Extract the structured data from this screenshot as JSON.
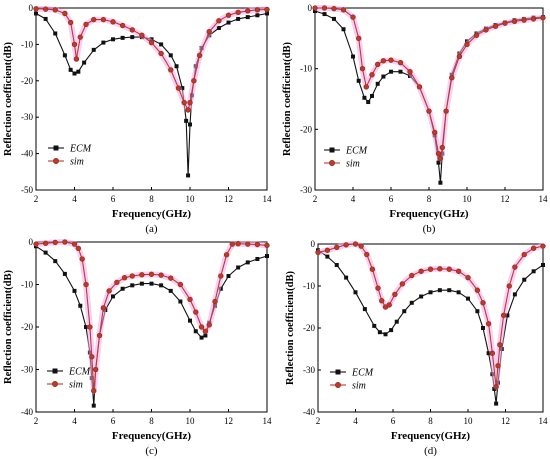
{
  "colors": {
    "ecm": "#111111",
    "sim": "#c0392b",
    "sim_marker": "#8b2a18",
    "sim_glow": "#f2a8f0",
    "axis": "#000000"
  },
  "chart_data": [
    {
      "type": "line",
      "panel_label": "(a)",
      "xlabel": "Frequency(GHz)",
      "ylabel": "Reflection coefficient(dB)",
      "xlim": [
        2,
        14
      ],
      "ylim": [
        -50,
        0
      ],
      "xticks": [
        2,
        4,
        6,
        8,
        10,
        12,
        14
      ],
      "yticks": [
        0,
        -10,
        -20,
        -30,
        -40,
        -50
      ],
      "xtick_labels": [
        "2",
        "4",
        "6",
        "8",
        "10",
        "12",
        "14"
      ],
      "ytick_labels": [
        "0",
        "-10",
        "-20",
        "-30",
        "-40",
        "-50"
      ],
      "grid": false,
      "legend": "bottom-left",
      "series": [
        {
          "name": "ECM",
          "marker": "square",
          "x": [
            2,
            2.5,
            3,
            3.5,
            3.8,
            4,
            4.2,
            4.5,
            5,
            5.5,
            6,
            6.5,
            7,
            7.5,
            8,
            8.5,
            9,
            9.3,
            9.6,
            9.8,
            9.9,
            10,
            10.1,
            10.3,
            10.6,
            11,
            11.5,
            12,
            12.5,
            13,
            13.5,
            14
          ],
          "y": [
            -1.5,
            -3,
            -7,
            -13,
            -17,
            -18,
            -17.5,
            -15,
            -11.5,
            -9.5,
            -8.6,
            -8.2,
            -8,
            -8,
            -8.6,
            -10,
            -13,
            -16,
            -22,
            -31,
            -46,
            -32,
            -24,
            -16,
            -11,
            -7.5,
            -5.5,
            -4,
            -3,
            -2.5,
            -2,
            -1.5
          ]
        },
        {
          "name": "sim",
          "marker": "circle",
          "x": [
            2,
            2.5,
            3,
            3.5,
            3.8,
            4.0,
            4.1,
            4.3,
            4.6,
            5,
            5.5,
            6,
            6.5,
            7,
            7.5,
            8,
            8.5,
            9,
            9.4,
            9.7,
            9.9,
            10.0,
            10.2,
            10.5,
            11,
            11.5,
            12,
            12.5,
            13,
            13.5,
            14
          ],
          "y": [
            -0.2,
            -0.3,
            -0.5,
            -1.5,
            -4,
            -10,
            -14,
            -8,
            -4.5,
            -3.2,
            -3.2,
            -3.8,
            -4.8,
            -6,
            -7.5,
            -9.5,
            -12.5,
            -17,
            -22,
            -26,
            -28,
            -26,
            -20,
            -13,
            -6.5,
            -3.5,
            -2,
            -1.2,
            -0.8,
            -0.5,
            -0.4
          ]
        }
      ]
    },
    {
      "type": "line",
      "panel_label": "(b)",
      "xlabel": "Frequency(GHz)",
      "ylabel": "Reflection coefficient(dB)",
      "xlim": [
        2,
        14
      ],
      "ylim": [
        -30,
        0
      ],
      "xticks": [
        2,
        4,
        6,
        8,
        10,
        12,
        14
      ],
      "yticks": [
        0,
        -10,
        -20,
        -30
      ],
      "xtick_labels": [
        "2",
        "4",
        "6",
        "8",
        "10",
        "12",
        "14"
      ],
      "ytick_labels": [
        "0",
        "-10",
        "-20",
        "-30"
      ],
      "grid": false,
      "legend": "bottom-right",
      "series": [
        {
          "name": "ECM",
          "marker": "square",
          "x": [
            2,
            2.5,
            3,
            3.5,
            4,
            4.3,
            4.6,
            4.8,
            5,
            5.3,
            5.6,
            6,
            6.5,
            7,
            7.5,
            8,
            8.3,
            8.5,
            8.6,
            8.7,
            8.9,
            9.2,
            9.6,
            10,
            10.5,
            11,
            11.5,
            12,
            12.5,
            13,
            13.5,
            14
          ],
          "y": [
            -0.5,
            -1,
            -1.8,
            -3.5,
            -8,
            -12,
            -14.8,
            -15.5,
            -14.5,
            -12.5,
            -11.3,
            -10.5,
            -10.5,
            -11.2,
            -13,
            -17,
            -21,
            -25.5,
            -28.8,
            -24,
            -17,
            -11,
            -7.5,
            -5.5,
            -4.2,
            -3.4,
            -2.8,
            -2.4,
            -2,
            -1.8,
            -1.6,
            -1.5
          ]
        },
        {
          "name": "sim",
          "marker": "circle",
          "x": [
            2,
            2.5,
            3,
            3.5,
            4,
            4.3,
            4.5,
            4.7,
            5,
            5.3,
            5.6,
            6,
            6.5,
            7,
            7.5,
            8,
            8.3,
            8.5,
            8.6,
            8.7,
            8.9,
            9.2,
            9.6,
            10,
            10.5,
            11,
            11.5,
            12,
            12.5,
            13,
            13.5,
            14
          ],
          "y": [
            0,
            0,
            -0.1,
            -0.3,
            -1.5,
            -5,
            -10,
            -13,
            -11,
            -9.3,
            -8.7,
            -8.6,
            -9,
            -10.5,
            -13,
            -17,
            -20.5,
            -24,
            -24.8,
            -23,
            -17,
            -11.5,
            -8,
            -6,
            -4.5,
            -3.6,
            -3,
            -2.5,
            -2.2,
            -2,
            -1.8,
            -1.6
          ]
        }
      ]
    },
    {
      "type": "line",
      "panel_label": "(c)",
      "xlabel": "Frequency(GHz)",
      "ylabel": "Reflection coefficient(dB)",
      "xlim": [
        2,
        14
      ],
      "ylim": [
        -40,
        0
      ],
      "xticks": [
        2,
        4,
        6,
        8,
        10,
        12,
        14
      ],
      "yticks": [
        0,
        -10,
        -20,
        -30,
        -40
      ],
      "xtick_labels": [
        "2",
        "4",
        "6",
        "8",
        "10",
        "12",
        "14"
      ],
      "ytick_labels": [
        "0",
        "-10",
        "-20",
        "-30",
        "-40"
      ],
      "grid": false,
      "legend": "bottom-left",
      "series": [
        {
          "name": "ECM",
          "marker": "square",
          "x": [
            2,
            2.5,
            3,
            3.5,
            4,
            4.3,
            4.6,
            4.8,
            4.9,
            5.0,
            5.1,
            5.3,
            5.6,
            6,
            6.5,
            7,
            7.5,
            8,
            8.5,
            9,
            9.5,
            10,
            10.3,
            10.6,
            10.8,
            11,
            11.3,
            11.6,
            12,
            12.5,
            13,
            13.5,
            14
          ],
          "y": [
            -1,
            -2.5,
            -4.5,
            -7.5,
            -11.5,
            -15,
            -20,
            -26,
            -32,
            -38.5,
            -30,
            -22,
            -16,
            -12.8,
            -11,
            -10.2,
            -9.8,
            -9.8,
            -10.2,
            -11.5,
            -14,
            -18.5,
            -21,
            -22.5,
            -22,
            -19,
            -15,
            -11,
            -8,
            -6,
            -4.8,
            -4,
            -3.3
          ]
        },
        {
          "name": "sim",
          "marker": "circle",
          "x": [
            2,
            2.5,
            3,
            3.5,
            4,
            4.2,
            4.4,
            4.6,
            4.8,
            4.9,
            5.0,
            5.1,
            5.3,
            5.5,
            5.8,
            6.2,
            6.6,
            7,
            7.5,
            8,
            8.5,
            9,
            9.5,
            10,
            10.3,
            10.6,
            10.8,
            11,
            11.3,
            11.6,
            11.9,
            12.2,
            12.5,
            13,
            13.5,
            14
          ],
          "y": [
            -0.5,
            -0.3,
            -0.1,
            0,
            -0.5,
            -1.5,
            -4,
            -10,
            -20,
            -27,
            -35,
            -30,
            -22,
            -15.5,
            -11.5,
            -9.5,
            -8.4,
            -8,
            -7.7,
            -7.6,
            -7.8,
            -8.5,
            -10,
            -13.5,
            -16.5,
            -20,
            -21,
            -19.5,
            -14,
            -8,
            -3,
            -0.5,
            -0.4,
            -0.5,
            -0.6,
            -0.8
          ]
        }
      ]
    },
    {
      "type": "line",
      "panel_label": "(d)",
      "xlabel": "Frequency(GHz)",
      "ylabel": "Reflection coefficient(dB)",
      "xlim": [
        2,
        14
      ],
      "ylim": [
        -40,
        0
      ],
      "xticks": [
        2,
        4,
        6,
        8,
        10,
        12,
        14
      ],
      "yticks": [
        0,
        -10,
        -20,
        -30,
        -40
      ],
      "xtick_labels": [
        "2",
        "4",
        "6",
        "8",
        "10",
        "12",
        "14"
      ],
      "ytick_labels": [
        "0",
        "-10",
        "-20",
        "-30",
        "-40"
      ],
      "grid": false,
      "legend": "bottom-left",
      "series": [
        {
          "name": "ECM",
          "marker": "square",
          "x": [
            2,
            2.5,
            3,
            3.5,
            4,
            4.5,
            5,
            5.3,
            5.6,
            5.9,
            6.2,
            6.6,
            7,
            7.5,
            8,
            8.5,
            9,
            9.5,
            10,
            10.5,
            10.8,
            11.1,
            11.3,
            11.4,
            11.5,
            11.6,
            11.8,
            12.1,
            12.5,
            13,
            13.5,
            14
          ],
          "y": [
            -1.5,
            -3,
            -5,
            -8,
            -11.5,
            -15.5,
            -19.5,
            -21,
            -21.5,
            -20.5,
            -18.5,
            -16,
            -14,
            -12.5,
            -11.5,
            -11,
            -11,
            -11.5,
            -13,
            -16,
            -20,
            -26,
            -31,
            -34.5,
            -38,
            -33,
            -25,
            -17,
            -12,
            -8.5,
            -6.5,
            -5
          ]
        },
        {
          "name": "sim",
          "marker": "circle",
          "x": [
            2,
            2.5,
            3,
            3.5,
            4,
            4.3,
            4.6,
            4.9,
            5.2,
            5.4,
            5.6,
            5.8,
            6.1,
            6.5,
            7,
            7.5,
            8,
            8.5,
            9,
            9.5,
            10,
            10.5,
            10.8,
            11.1,
            11.3,
            11.5,
            11.6,
            11.7,
            11.9,
            12.2,
            12.5,
            13,
            13.5,
            14
          ],
          "y": [
            -2,
            -1.5,
            -0.8,
            -0.2,
            0,
            -0.5,
            -2.5,
            -6,
            -10.5,
            -13.5,
            -15,
            -14.5,
            -12,
            -9.5,
            -7.5,
            -6.5,
            -6,
            -5.9,
            -6,
            -6.5,
            -8,
            -11,
            -14,
            -19,
            -26,
            -34,
            -29,
            -24,
            -17,
            -10,
            -5.5,
            -2.5,
            -1,
            -0.5
          ]
        }
      ]
    }
  ]
}
